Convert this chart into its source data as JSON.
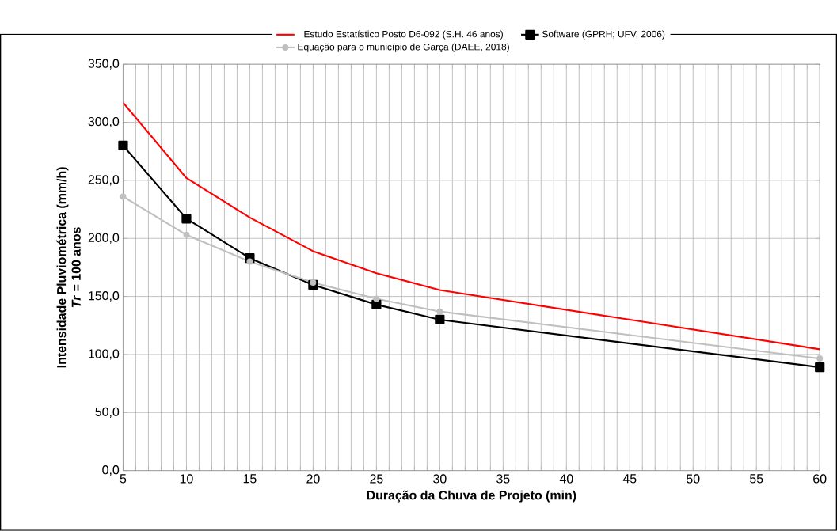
{
  "chart_data": {
    "type": "line",
    "xlabel": "Duração da Chuva de Projeto (min)",
    "ylabel": "Intensidade Pluviométrica (mm/h)\n*Tr* = 100 anos",
    "x": [
      5,
      10,
      15,
      20,
      25,
      30,
      60
    ],
    "series": [
      {
        "name": "Estudo Estatístico Posto D6-092 (S.H. 46 anos)",
        "color": "#ff0000",
        "marker": "none",
        "values": [
          317,
          252,
          218,
          189,
          170,
          155.5,
          104.5
        ]
      },
      {
        "name": "Software (GPRH; UFV, 2006)",
        "color": "#000000",
        "marker": "square",
        "values": [
          280,
          217,
          183,
          160,
          143,
          130,
          89
        ]
      },
      {
        "name": "Equação para o município de Garça (DAEE, 2018)",
        "color": "#bfbfbf",
        "marker": "circle",
        "values": [
          236,
          203,
          180,
          162,
          148,
          137,
          96.5
        ]
      }
    ],
    "xlim": [
      5,
      60
    ],
    "xticks": [
      5,
      {
        "value": 6,
        "label": null
      },
      {
        "value": 7,
        "label": null
      },
      {
        "value": 8,
        "label": null
      },
      {
        "value": 9,
        "label": null
      },
      10,
      {
        "value": 11,
        "label": null
      },
      {
        "value": 12,
        "label": null
      },
      {
        "value": 13,
        "label": null
      },
      {
        "value": 14,
        "label": null
      },
      15,
      {
        "value": 16,
        "label": null
      },
      {
        "value": 17,
        "label": null
      },
      {
        "value": 18,
        "label": null
      },
      {
        "value": 19,
        "label": null
      },
      20,
      {
        "value": 21,
        "label": null
      },
      {
        "value": 22,
        "label": null
      },
      {
        "value": 23,
        "label": null
      },
      {
        "value": 24,
        "label": null
      },
      25,
      {
        "value": 26,
        "label": null
      },
      {
        "value": 27,
        "label": null
      },
      {
        "value": 28,
        "label": null
      },
      {
        "value": 29,
        "label": null
      },
      30,
      {
        "value": 31,
        "label": null
      },
      {
        "value": 32,
        "label": null
      },
      {
        "value": 33,
        "label": null
      },
      {
        "value": 34,
        "label": null
      },
      35,
      {
        "value": 36,
        "label": null
      },
      {
        "value": 37,
        "label": null
      },
      {
        "value": 38,
        "label": null
      },
      {
        "value": 39,
        "label": null
      },
      40,
      {
        "value": 41,
        "label": null
      },
      {
        "value": 42,
        "label": null
      },
      {
        "value": 43,
        "label": null
      },
      {
        "value": 44,
        "label": null
      },
      45,
      {
        "value": 46,
        "label": null
      },
      {
        "value": 47,
        "label": null
      },
      {
        "value": 48,
        "label": null
      },
      {
        "value": 49,
        "label": null
      },
      50,
      {
        "value": 51,
        "label": null
      },
      {
        "value": 52,
        "label": null
      },
      {
        "value": 53,
        "label": null
      },
      {
        "value": 54,
        "label": null
      },
      55,
      {
        "value": 56,
        "label": null
      },
      {
        "value": 57,
        "label": null
      },
      {
        "value": 58,
        "label": null
      },
      {
        "value": 59,
        "label": null
      },
      60
    ],
    "ylim": [
      0,
      350
    ],
    "yticks": [
      {
        "value": 0,
        "label": "0,0"
      },
      {
        "value": 50,
        "label": "50,0"
      },
      {
        "value": 100,
        "label": "100,0"
      },
      {
        "value": 150,
        "label": "150,0"
      },
      {
        "value": 200,
        "label": "200,0"
      },
      {
        "value": 250,
        "label": "250,0"
      },
      {
        "value": 300,
        "label": "300,0"
      },
      {
        "value": 350,
        "label": "350,0"
      }
    ],
    "grid": true,
    "legend": "top",
    "line_style": "solid"
  }
}
